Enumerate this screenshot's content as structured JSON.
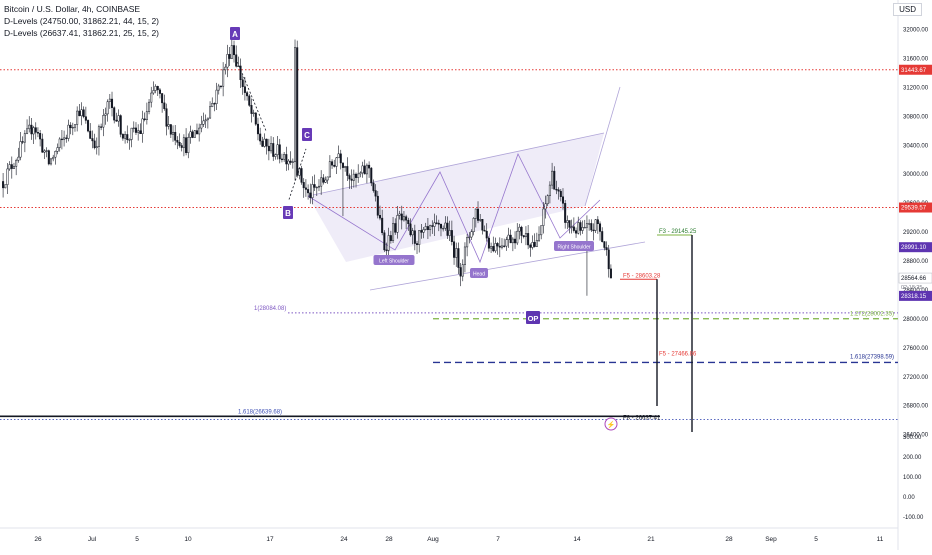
{
  "header": {
    "title": "Bitcoin / U.S. Dollar, 4h, COINBASE",
    "indicators": [
      "D-Levels (24750.00, 31862.21, 44, 15, 2)",
      "D-Levels (26637.41, 31862.21, 25, 15, 2)"
    ],
    "currency": "USD"
  },
  "colors": {
    "up": "#131722",
    "down": "#131722",
    "resistance": "#e53935",
    "pattern": "#7e57c2",
    "pattern_fill": "#e8e4f5",
    "blue": "#3f51b5",
    "green": "#7cb342",
    "badge": "#673ab7"
  },
  "chart_data": {
    "type": "candlestick",
    "instrument": "Bitcoin / U.S. Dollar",
    "interval": "4h",
    "exchange": "COINBASE",
    "x_tick_labels": [
      "26",
      "Jul",
      "5",
      "10",
      "17",
      "24",
      "28",
      "Aug",
      "7",
      "14",
      "21",
      "28",
      "Sep",
      "5",
      "11"
    ],
    "y_ticks": [
      32000,
      31600,
      31200,
      30800,
      30400,
      30000,
      29600,
      29200,
      28800,
      28400,
      28000,
      27600,
      27200,
      26800,
      26400
    ],
    "lower_scale_ticks": [
      "300.00",
      "200.00",
      "100.00",
      "0.00",
      "-100.00"
    ],
    "ylim": [
      26150,
      32400
    ],
    "price_path": [
      [
        29900,
        30300
      ],
      [
        30300,
        30700
      ],
      [
        30700,
        30150
      ],
      [
        30150,
        30500
      ],
      [
        30500,
        30900
      ],
      [
        30900,
        30400
      ],
      [
        30400,
        31000
      ],
      [
        31000,
        30500
      ],
      [
        30500,
        30600
      ],
      [
        30600,
        31200
      ],
      [
        31200,
        30600
      ],
      [
        30600,
        30400
      ],
      [
        30400,
        30700
      ],
      [
        30700,
        31100
      ],
      [
        31100,
        31800
      ],
      [
        31800,
        31000
      ],
      [
        31000,
        30400
      ],
      [
        30400,
        30300
      ],
      [
        30300,
        30200
      ],
      [
        30200,
        29700
      ],
      [
        29700,
        29900
      ],
      [
        29900,
        30300
      ],
      [
        30300,
        29900
      ],
      [
        29900,
        30100
      ],
      [
        30100,
        29000
      ],
      [
        29000,
        29400
      ],
      [
        29400,
        29100
      ],
      [
        29100,
        29200
      ],
      [
        29200,
        29300
      ],
      [
        29300,
        28700
      ],
      [
        28700,
        29500
      ],
      [
        29500,
        29000
      ],
      [
        29000,
        29100
      ],
      [
        29100,
        29200
      ],
      [
        29200,
        29000
      ],
      [
        29000,
        30000
      ],
      [
        30000,
        29300
      ],
      [
        29300,
        29200
      ],
      [
        29200,
        29300
      ],
      [
        29300,
        28600
      ]
    ],
    "last_price": 28564.66,
    "countdown": "02:18:25",
    "price_labels": [
      {
        "value": 31443.67,
        "text": "31443.67",
        "color": "red"
      },
      {
        "value": 29539.57,
        "text": "29539.57",
        "color": "red"
      },
      {
        "value": 28991.1,
        "text": "28991.10",
        "color": "purple"
      },
      {
        "value": 28564.66,
        "text": "28564.66",
        "color": "gray"
      },
      {
        "value": 28318.15,
        "text": "28318.15",
        "color": "purple"
      }
    ],
    "horizontal_levels": [
      {
        "value": 31443.67,
        "style": "red-dotted"
      },
      {
        "value": 29539.57,
        "style": "red-dotted"
      },
      {
        "value": 28084.08,
        "style": "purple-dotted",
        "label": "1(28084.08)"
      },
      {
        "value": 28002.35,
        "style": "green-dashed",
        "label": "1.272(28002.35)"
      },
      {
        "value": 27398.59,
        "style": "blue-dashed",
        "label": "1.618(27398.59)"
      },
      {
        "value": 26639.68,
        "style": "black-solid",
        "label": "1.618(26639.68)"
      },
      {
        "value": 26637.41,
        "style": "blue-dotted",
        "label": "F8 - 26637.41"
      }
    ],
    "targets": [
      {
        "text": "F3 - 29145.25",
        "value": 29145.25,
        "color": "green"
      },
      {
        "text": "F5 - 28603.28",
        "value": 28603.28,
        "color": "red"
      },
      {
        "text": "F5 - 27466.86",
        "value": 27466.86,
        "color": "red"
      },
      {
        "text": "F8 - 26637.41",
        "value": 26637.41,
        "color": "black"
      }
    ],
    "pattern_points": [
      "A",
      "B",
      "C"
    ],
    "pattern_labels": [
      "Left Shoulder",
      "Head",
      "Right Shoulder"
    ],
    "op_label": "OP",
    "lightning": "⚡"
  }
}
